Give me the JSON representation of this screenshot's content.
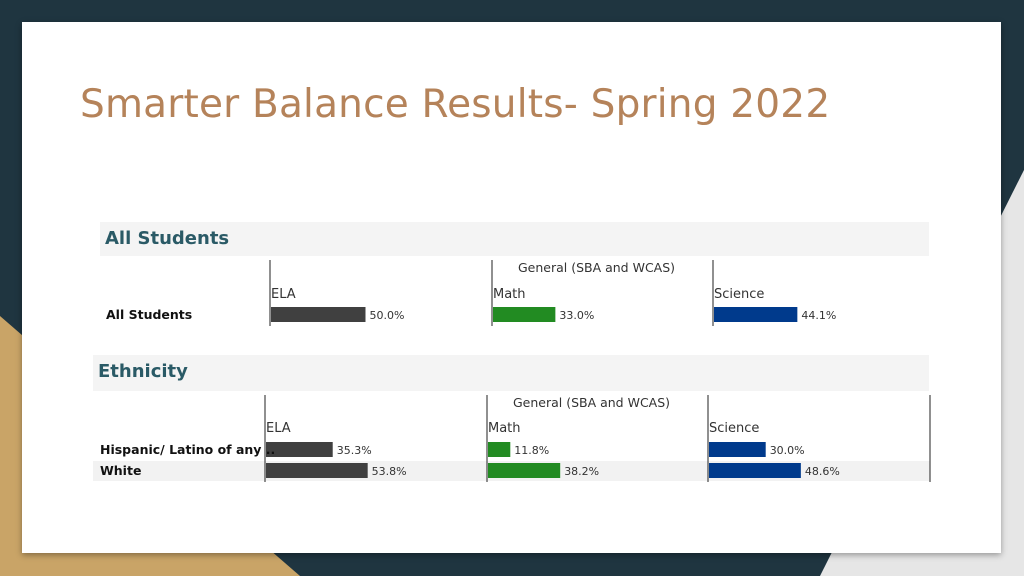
{
  "title": "Smarter Balance Results- Spring 2022",
  "colors": {
    "ELA": "#404040",
    "Math": "#228b22",
    "Science": "#003a8c",
    "title": "#b5835a",
    "section": "#2a5a66"
  },
  "chart_data": [
    {
      "type": "bar",
      "section": "All Students",
      "group_label": "General (SBA and WCAS)",
      "subjects": [
        "ELA",
        "Math",
        "Science"
      ],
      "rows": [
        "All Students"
      ],
      "series": [
        {
          "name": "ELA",
          "values": [
            50.0
          ]
        },
        {
          "name": "Math",
          "values": [
            33.0
          ]
        },
        {
          "name": "Science",
          "values": [
            44.1
          ]
        }
      ],
      "value_labels": [
        [
          "50.0%"
        ],
        [
          "33.0%"
        ],
        [
          "44.1%"
        ]
      ],
      "xlim": [
        0,
        100
      ]
    },
    {
      "type": "bar",
      "section": "Ethnicity",
      "group_label": "General (SBA and WCAS)",
      "subjects": [
        "ELA",
        "Math",
        "Science"
      ],
      "rows": [
        "Hispanic/ Latino of any ..",
        "White"
      ],
      "series": [
        {
          "name": "ELA",
          "values": [
            35.3,
            53.8
          ]
        },
        {
          "name": "Math",
          "values": [
            11.8,
            38.2
          ]
        },
        {
          "name": "Science",
          "values": [
            30.0,
            48.6
          ]
        }
      ],
      "value_labels": [
        [
          "35.3%",
          "53.8%"
        ],
        [
          "11.8%",
          "38.2%"
        ],
        [
          "30.0%",
          "48.6%"
        ]
      ],
      "xlim": [
        0,
        100
      ]
    }
  ]
}
